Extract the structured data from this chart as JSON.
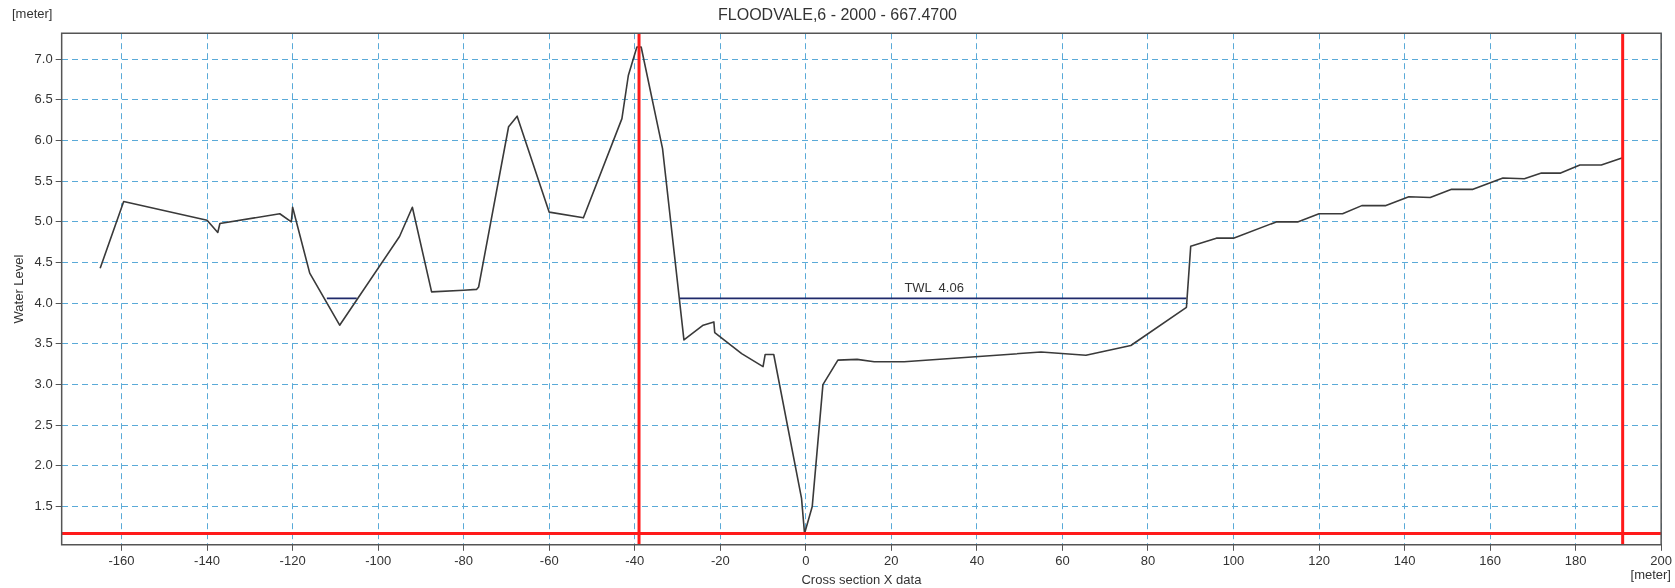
{
  "chart_data": {
    "type": "line",
    "title": "FLOODVALE,6 - 2000 - 667.4700",
    "xlabel": "Cross section X data",
    "ylabel": "Water Level",
    "annotations": [
      "[meter]",
      "[meter]",
      {
        "text": "TWL  4.06",
        "x": 30,
        "y": 4.06
      }
    ],
    "series": [
      {
        "color": "#3a3a3a",
        "x": [
          -165,
          -159.5,
          -140,
          -137.5,
          -137,
          -123,
          -120.3,
          -120,
          -116,
          -109,
          -95,
          -92,
          -87.5,
          -80,
          -77,
          -76.5,
          -69.5,
          -67.5,
          -60,
          -52,
          -43,
          -41.5,
          -39.5,
          -38.5,
          -33.5,
          -28.5,
          -24,
          -21.5,
          -21.3,
          -15,
          -10,
          -9.5,
          -7.5,
          -1,
          -0.3,
          1.5,
          4,
          7.5,
          12,
          16,
          23,
          55,
          65.5,
          76,
          89,
          90,
          96,
          100,
          110,
          115,
          120,
          125.5,
          130,
          135.5,
          141,
          146,
          151,
          156,
          163,
          168,
          172,
          176.5,
          181,
          186,
          191
        ],
        "values": [
          4.43,
          5.25,
          5.02,
          4.87,
          4.98,
          5.1,
          5.0,
          5.18,
          4.37,
          3.73,
          4.82,
          5.18,
          4.14,
          4.16,
          4.17,
          4.2,
          6.17,
          6.3,
          5.12,
          5.05,
          6.27,
          6.8,
          7.15,
          7.15,
          5.9,
          3.55,
          3.73,
          3.77,
          3.64,
          3.38,
          3.22,
          3.37,
          3.37,
          1.6,
          1.17,
          1.5,
          3.0,
          3.3,
          3.31,
          3.28,
          3.28,
          3.4,
          3.36,
          3.48,
          3.95,
          4.7,
          4.8,
          4.8,
          5.0,
          5.0,
          5.1,
          5.1,
          5.2,
          5.2,
          5.31,
          5.3,
          5.4,
          5.4,
          5.54,
          5.53,
          5.6,
          5.6,
          5.7,
          5.7,
          5.79
        ]
      },
      {
        "color": "#1f2a6b",
        "x": [
          -112,
          -105,
          -67,
          -29.5,
          89
        ],
        "values": [
          4.06,
          4.06,
          null,
          4.06,
          4.06
        ]
      }
    ],
    "ref_lines": [
      {
        "axis": "x",
        "value": -39,
        "color": "#ff1a1a"
      },
      {
        "axis": "x",
        "value": 191,
        "color": "#ff1a1a"
      },
      {
        "axis": "y",
        "value": 1.17,
        "color": "#ff1a1a"
      }
    ],
    "xlim": [
      -174,
      200
    ],
    "xticks": [
      -160,
      -140,
      -120,
      -100,
      -80,
      -60,
      -40,
      -20,
      0,
      20,
      40,
      60,
      80,
      100,
      120,
      140,
      160,
      180,
      200
    ],
    "ylim": [
      1.03,
      7.32
    ],
    "yticks": [
      1.5,
      {
        "value": 2,
        "label": "2.0"
      },
      2.5,
      {
        "value": 3,
        "label": "3.0"
      },
      3.5,
      {
        "value": 4,
        "label": "4.0"
      },
      4.5,
      {
        "value": 5,
        "label": "5.0"
      },
      5.5,
      {
        "value": 6,
        "label": "6.0"
      },
      6.5,
      {
        "value": 7,
        "label": "7.0"
      }
    ],
    "grid": true,
    "marker": "none",
    "line_style": "solid",
    "legend": false
  }
}
